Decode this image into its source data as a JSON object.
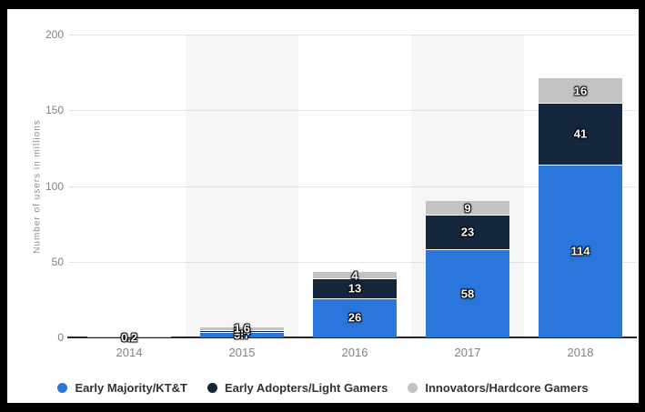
{
  "chart_data": {
    "type": "bar",
    "stacked": true,
    "title": "",
    "ylabel": "Number of users in millions",
    "xlabel": "",
    "categories": [
      "2014",
      "2015",
      "2016",
      "2017",
      "2018"
    ],
    "series": [
      {
        "name": "Early Majority/KT&T",
        "color": "#2b76dd",
        "values": [
          0,
          3.7,
          26,
          58,
          114
        ]
      },
      {
        "name": "Early Adopters/Light Gamers",
        "color": "#14273d",
        "values": [
          0,
          1.4,
          13,
          23,
          41
        ]
      },
      {
        "name": "Innovators/Hardcore Gamers",
        "color": "#c3c3c3",
        "values": [
          0.2,
          1.6,
          4,
          9,
          16
        ]
      }
    ],
    "data_labels_shown": [
      "0.2",
      "3.7",
      "1.4",
      "1.6",
      "26",
      "13",
      "4",
      "58",
      "23",
      "9",
      "114",
      "41",
      "16"
    ],
    "ylim": [
      0,
      200
    ],
    "yticks": [
      0,
      50,
      100,
      150,
      200
    ],
    "grid": "horizontal-dotted",
    "legend_position": "bottom",
    "banded_category_indexes": [
      1,
      3
    ],
    "style": {
      "plot_band_color": "#f6f6f6",
      "gridline_color": "#cfcfcf",
      "axis_line_color": "#262626",
      "tick_label_color": "#828282",
      "legend_text_color": "#333333",
      "data_label_color": "#ffffff",
      "background_color": "#ffffff",
      "frame_color": "#000000"
    }
  }
}
